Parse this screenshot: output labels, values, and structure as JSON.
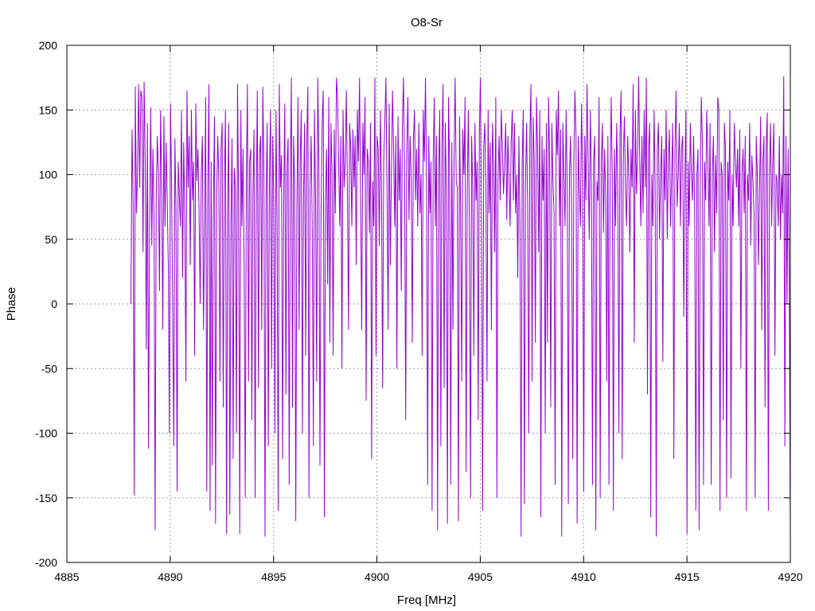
{
  "chart_data": {
    "type": "line",
    "title": "O8-Sr",
    "xlabel": "Freq [MHz]",
    "ylabel": "Phase",
    "xlim": [
      4885,
      4920
    ],
    "ylim": [
      -200,
      200
    ],
    "x_ticks": [
      4885,
      4890,
      4895,
      4900,
      4905,
      4910,
      4915,
      4920
    ],
    "y_ticks": [
      -200,
      -150,
      -100,
      -50,
      0,
      50,
      100,
      150,
      200
    ],
    "grid": true,
    "legend": "none",
    "series_color": "#9400d3",
    "grid_color": "#a0a0a0",
    "series": [
      {
        "x_start": 4888.1,
        "x_end": 4920,
        "values": [
          0,
          135,
          80,
          -148,
          168,
          70,
          102,
          170,
          90,
          165,
          160,
          40,
          172,
          110,
          -35,
          140,
          -112,
          60,
          152,
          45,
          120,
          70,
          -175,
          80,
          130,
          100,
          10,
          150,
          90,
          -20,
          145,
          60,
          125,
          82,
          30,
          -100,
          155,
          90,
          -5,
          -110,
          128,
          75,
          -145,
          110,
          85,
          60,
          150,
          20,
          125,
          70,
          -60,
          165,
          90,
          130,
          30,
          150,
          80,
          110,
          -40,
          155,
          95,
          120,
          70,
          0,
          100,
          130,
          -20,
          60,
          160,
          -145,
          90,
          170,
          -160,
          110,
          -125,
          75,
          145,
          -170,
          80,
          130,
          95,
          -60,
          120,
          140,
          -80,
          90,
          150,
          -178,
          70,
          140,
          -163,
          60,
          128,
          -120,
          105,
          90,
          -100,
          170,
          75,
          -178,
          150,
          60,
          120,
          30,
          -150,
          95,
          170,
          -60,
          110,
          120,
          -90,
          85,
          135,
          -150,
          75,
          165,
          -65,
          115,
          130,
          -20,
          168,
          100,
          -180,
          80,
          140,
          -110,
          95,
          150,
          -50,
          130,
          80,
          -100,
          150,
          65,
          -160,
          170,
          90,
          115,
          -120,
          80,
          155,
          -70,
          105,
          128,
          -140,
          95,
          175,
          -80,
          130,
          90,
          -168,
          75,
          160,
          -20,
          110,
          150,
          -100,
          80,
          140,
          -40,
          125,
          168,
          -150,
          90,
          130,
          55,
          -110,
          150,
          80,
          -60,
          175,
          110,
          -125,
          70,
          140,
          165,
          -165,
          80,
          120,
          15,
          160,
          -30,
          140,
          100,
          -40,
          135,
          70,
          175,
          160,
          110,
          60,
          130,
          -50,
          150,
          90,
          110,
          165,
          85,
          -20,
          140,
          120,
          60,
          135,
          90,
          130,
          30,
          150,
          110,
          175,
          80,
          -20,
          140,
          100,
          160,
          -75,
          120,
          110,
          55,
          140,
          -120,
          95,
          60,
          175,
          -40,
          130,
          120,
          45,
          150,
          90,
          -65,
          110,
          140,
          175,
          90,
          -20,
          155,
          30,
          100,
          165,
          120,
          60,
          130,
          -50,
          145,
          80,
          120,
          10,
          140,
          175,
          100,
          -90,
          120,
          160,
          65,
          130,
          100,
          -30,
          125,
          150,
          80,
          120,
          60,
          140,
          70,
          100,
          -40,
          150,
          110,
          175,
          90,
          -140,
          130,
          70,
          110,
          -160,
          110,
          160,
          60,
          130,
          -175,
          100,
          150,
          -110,
          120,
          170,
          -65,
          140,
          90,
          -170,
          160,
          105,
          -140,
          125,
          -20,
          110,
          175,
          95,
          90,
          -168,
          145,
          70,
          -60,
          135,
          100,
          160,
          -130,
          85,
          150,
          55,
          -150,
          130,
          90,
          -40,
          140,
          80,
          110,
          -90,
          130,
          175,
          60,
          -160,
          120,
          140,
          90,
          -60,
          150,
          70,
          125,
          -20,
          140,
          110,
          40,
          160,
          -150,
          95,
          130,
          80,
          150,
          120,
          85,
          110,
          140,
          65,
          130,
          95,
          60,
          125,
          150,
          80,
          140,
          70,
          100,
          20,
          130,
          60,
          -180,
          110,
          150,
          -155,
          90,
          140,
          75,
          -100,
          130,
          170,
          -60,
          145,
          110,
          -30,
          160,
          120,
          40,
          150,
          -165,
          130,
          80,
          120,
          -100,
          140,
          -30,
          160,
          110,
          -80,
          140,
          95,
          70,
          -140,
          150,
          115,
          165,
          60,
          135,
          -180,
          140,
          100,
          60,
          150,
          90,
          -155,
          100,
          130,
          70,
          -120,
          110,
          165,
          130,
          -170,
          130,
          90,
          60,
          155,
          100,
          -145,
          130,
          80,
          170,
          110,
          50,
          150,
          90,
          -140,
          110,
          130,
          -175,
          95,
          80,
          160,
          -150,
          110,
          140,
          55,
          120,
          85,
          -60,
          130,
          -140,
          90,
          160,
          100,
          -160,
          120,
          60,
          140,
          90,
          -100,
          130,
          165,
          -120,
          110,
          145,
          90,
          60,
          130,
          100,
          40,
          120,
          90,
          170,
          -30,
          150,
          85,
          115,
          176,
          110,
          60,
          130,
          70,
          150,
          90,
          175,
          -70,
          120,
          140,
          -165,
          100,
          60,
          150,
          90,
          -180,
          120,
          140,
          50,
          100,
          130,
          -45,
          120,
          80,
          150,
          50,
          110,
          135,
          60,
          100,
          140,
          -120,
          120,
          165,
          75,
          100,
          140,
          60,
          120,
          130,
          -10,
          95,
          150,
          -178,
          110,
          60,
          140,
          100,
          80,
          130,
          70,
          -160,
          100,
          120,
          -175,
          90,
          160,
          125,
          -140,
          110,
          80,
          150,
          110,
          60,
          140,
          -140,
          100,
          130,
          40,
          115,
          70,
          160,
          150,
          -160,
          110,
          100,
          -90,
          140,
          120,
          -150,
          110,
          80,
          150,
          -135,
          100,
          60,
          140,
          110,
          90,
          120,
          60,
          135,
          -50,
          100,
          120,
          70,
          130,
          -160,
          100,
          80,
          140,
          45,
          115,
          95,
          70,
          -150,
          130,
          100,
          30,
          90,
          145,
          -20,
          110,
          130,
          -80,
          120,
          148,
          -160,
          100,
          140,
          60,
          110,
          140,
          -40,
          100,
          95,
          60,
          130,
          50,
          100,
          70,
          176,
          -110,
          130,
          0,
          120,
          20,
          -180
        ]
      }
    ]
  }
}
